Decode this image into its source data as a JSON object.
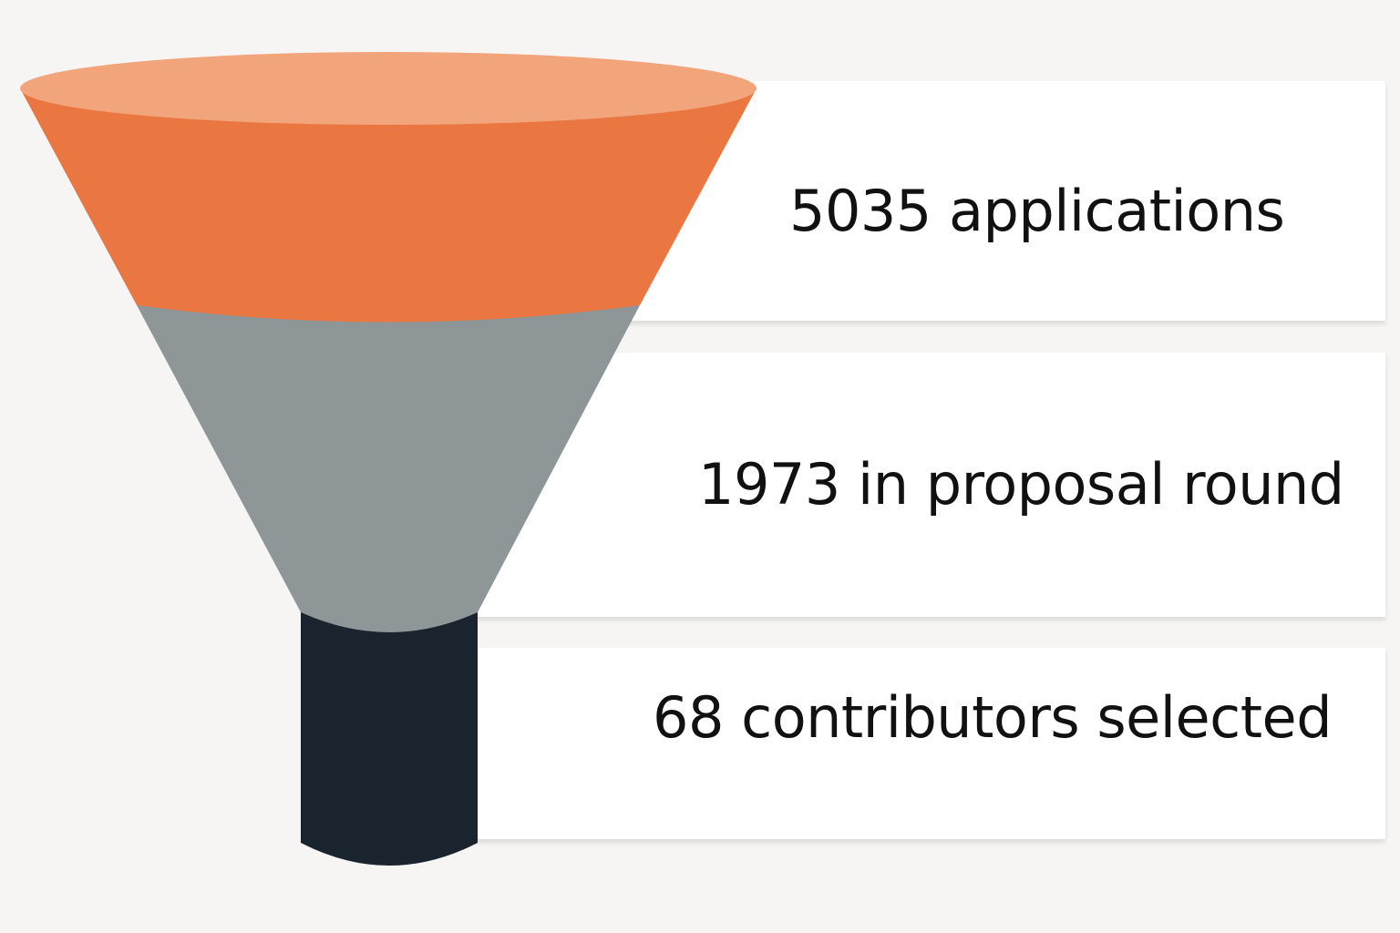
{
  "stages": [
    {
      "label": "5035 applications",
      "value": 5035,
      "color": "#ea7642"
    },
    {
      "label": "1973 in proposal round",
      "value": 1973,
      "color": "#8e9698"
    },
    {
      "label": "68 contributors selected",
      "value": 68,
      "color": "#1a242f"
    }
  ],
  "colors": {
    "funnel_top_rim": "#f2a47b",
    "background": "#f6f5f3",
    "card": "#ffffff"
  }
}
